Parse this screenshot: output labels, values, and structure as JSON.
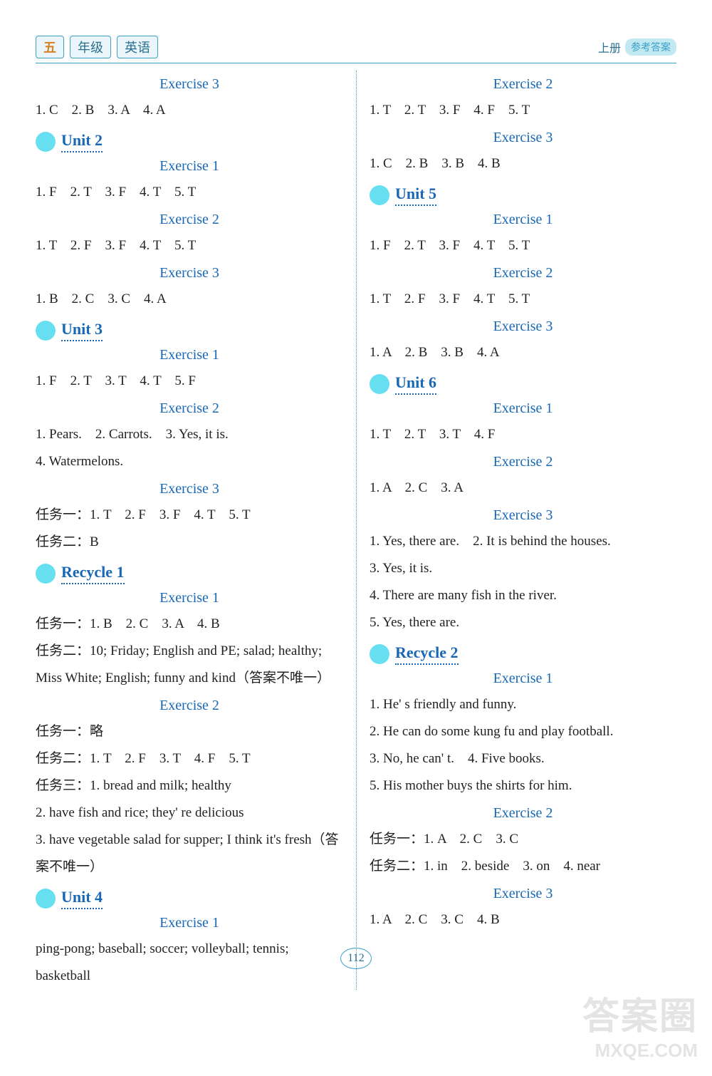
{
  "header": {
    "grade": "五",
    "grade_label": "年级",
    "subject": "英语",
    "volume_prefix": "上册",
    "volume_pill": "参考答案"
  },
  "colors": {
    "accent": "#1868b5",
    "border": "#3aa0c8",
    "dot": "#66dff1",
    "text": "#222222",
    "background": "#ffffff",
    "grade_color": "#d87f1e"
  },
  "typography": {
    "body_fontsize": 19,
    "title_fontsize": 20,
    "unit_fontsize": 22,
    "line_height": 2.0
  },
  "left": [
    {
      "type": "ex",
      "text": "Exercise 3"
    },
    {
      "type": "line",
      "text": "1. C　2. B　3. A　4. A"
    },
    {
      "type": "unit",
      "text": "Unit 2"
    },
    {
      "type": "ex",
      "text": "Exercise 1"
    },
    {
      "type": "line",
      "text": "1. F　2. T　3. F　4. T　5. T"
    },
    {
      "type": "ex",
      "text": "Exercise 2"
    },
    {
      "type": "line",
      "text": "1. T　2. F　3. F　4. T　5. T"
    },
    {
      "type": "ex",
      "text": "Exercise 3"
    },
    {
      "type": "line",
      "text": "1. B　2. C　3. C　4. A"
    },
    {
      "type": "unit",
      "text": "Unit 3"
    },
    {
      "type": "ex",
      "text": "Exercise 1"
    },
    {
      "type": "line",
      "text": "1. F　2. T　3. T　4. T　5. F"
    },
    {
      "type": "ex",
      "text": "Exercise 2"
    },
    {
      "type": "line",
      "text": "1. Pears.　2. Carrots.　3. Yes, it is."
    },
    {
      "type": "line",
      "text": "4. Watermelons."
    },
    {
      "type": "ex",
      "text": "Exercise 3"
    },
    {
      "type": "line",
      "text": "任务一：1. T　2. F　3. F　4. T　5. T"
    },
    {
      "type": "line",
      "text": "任务二：B"
    },
    {
      "type": "unit",
      "text": "Recycle 1"
    },
    {
      "type": "ex",
      "text": "Exercise 1"
    },
    {
      "type": "line",
      "text": "任务一：1. B　2. C　3. A　4. B"
    },
    {
      "type": "line",
      "text": "任务二：10; Friday; English and PE; salad; healthy;"
    },
    {
      "type": "line",
      "text": "Miss White; English; funny and kind（答案不唯一）"
    },
    {
      "type": "ex",
      "text": "Exercise 2"
    },
    {
      "type": "line",
      "text": "任务一：略"
    },
    {
      "type": "line",
      "text": "任务二：1. T　2. F　3. T　4. F　5. T"
    },
    {
      "type": "line",
      "text": "任务三：1. bread and milk; healthy"
    },
    {
      "type": "line",
      "text": "2. have fish and rice; they' re delicious"
    },
    {
      "type": "line",
      "text": "3. have vegetable salad for supper; I think it's fresh（答"
    },
    {
      "type": "line",
      "text": "案不唯一）"
    },
    {
      "type": "unit",
      "text": "Unit 4"
    },
    {
      "type": "ex",
      "text": "Exercise 1"
    },
    {
      "type": "line",
      "text": "ping-pong; baseball; soccer; volleyball; tennis; basketball"
    }
  ],
  "right": [
    {
      "type": "ex",
      "text": "Exercise 2"
    },
    {
      "type": "line",
      "text": "1. T　2. T　3. F　4. F　5. T"
    },
    {
      "type": "ex",
      "text": "Exercise 3"
    },
    {
      "type": "line",
      "text": "1. C　2. B　3. B　4. B"
    },
    {
      "type": "unit",
      "text": "Unit 5"
    },
    {
      "type": "ex",
      "text": "Exercise 1"
    },
    {
      "type": "line",
      "text": "1. F　2. T　3. F　4. T　5. T"
    },
    {
      "type": "ex",
      "text": "Exercise 2"
    },
    {
      "type": "line",
      "text": "1. T　2. F　3. F　4. T　5. T"
    },
    {
      "type": "ex",
      "text": "Exercise 3"
    },
    {
      "type": "line",
      "text": "1. A　2. B　3. B　4. A"
    },
    {
      "type": "unit",
      "text": "Unit 6"
    },
    {
      "type": "ex",
      "text": "Exercise 1"
    },
    {
      "type": "line",
      "text": "1. T　2. T　3. T　4. F"
    },
    {
      "type": "ex",
      "text": "Exercise 2"
    },
    {
      "type": "line",
      "text": "1. A　2. C　3. A"
    },
    {
      "type": "ex",
      "text": "Exercise 3"
    },
    {
      "type": "line",
      "text": "1. Yes, there are.　2. It is behind the houses."
    },
    {
      "type": "line",
      "text": "3. Yes, it is."
    },
    {
      "type": "line",
      "text": "4. There are many fish in the river."
    },
    {
      "type": "line",
      "text": "5. Yes, there are."
    },
    {
      "type": "unit",
      "text": "Recycle 2"
    },
    {
      "type": "ex",
      "text": "Exercise 1"
    },
    {
      "type": "line",
      "text": "1. He' s friendly and funny."
    },
    {
      "type": "line",
      "text": "2. He can do some kung fu and play football."
    },
    {
      "type": "line",
      "text": "3. No, he can' t.　4. Five books."
    },
    {
      "type": "line",
      "text": "5. His mother buys the shirts for him."
    },
    {
      "type": "ex",
      "text": "Exercise 2"
    },
    {
      "type": "line",
      "text": "任务一：1. A　2. C　3. C"
    },
    {
      "type": "line",
      "text": "任务二：1. in　2. beside　3. on　4. near"
    },
    {
      "type": "ex",
      "text": "Exercise 3"
    },
    {
      "type": "line",
      "text": "1. A　2. C　3. C　4. B"
    }
  ],
  "page_number": "112",
  "watermark": {
    "line1": "答案圈",
    "line2": "MXQE.COM"
  }
}
